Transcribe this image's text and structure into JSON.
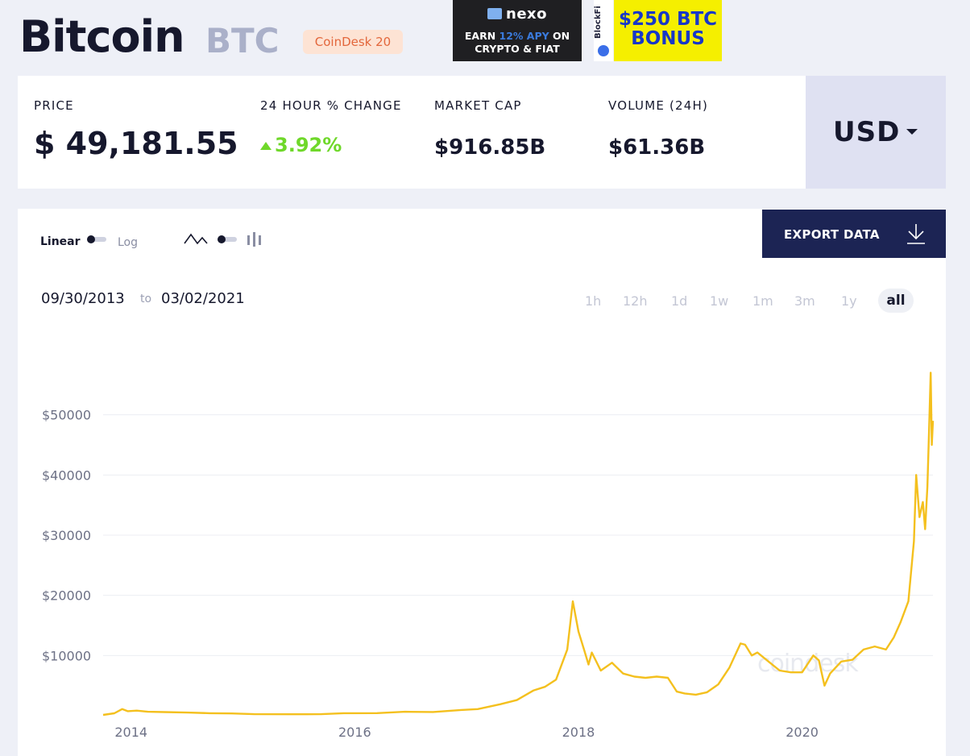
{
  "header": {
    "name": "Bitcoin",
    "symbol": "BTC",
    "index_badge": "CoinDesk 20"
  },
  "ads": {
    "nexo": {
      "brand": "nexo",
      "line1_a": "EARN ",
      "line1_hl": "12% APY",
      "line1_b": " ON",
      "line2": "CRYPTO & FIAT"
    },
    "blockfi": {
      "brand": "BlockFi",
      "line1": "$250 BTC",
      "line2": "BONUS"
    }
  },
  "stats": {
    "price_label": "PRICE",
    "price_value": "$ 49,181.55",
    "change_label": "24 HOUR % CHANGE",
    "change_value": "3.92%",
    "marketcap_label": "MARKET CAP",
    "marketcap_value": "$916.85B",
    "volume_label": "VOLUME (24H)",
    "volume_value": "$61.36B"
  },
  "currency": {
    "selected": "USD"
  },
  "toolbar": {
    "linear_label": "Linear",
    "log_label": "Log",
    "export_label": "EXPORT DATA"
  },
  "range": {
    "from": "09/30/2013",
    "connector": "to",
    "to": "03/02/2021"
  },
  "periods": [
    "1h",
    "12h",
    "1d",
    "1w",
    "1m",
    "3m",
    "1y",
    "all"
  ],
  "active_period": "all",
  "watermark": "coindesk",
  "colors": {
    "line": "#f4c01e",
    "accent_dark": "#1c2454",
    "positive": "#6fd82a"
  },
  "chart_data": {
    "type": "line",
    "title": "",
    "xlabel": "",
    "ylabel": "",
    "x_tick_labels": [
      "2014",
      "2016",
      "2018",
      "2020"
    ],
    "x_ticks": [
      2014,
      2016,
      2018,
      2020
    ],
    "y_tick_labels": [
      "$50000",
      "$40000",
      "$30000",
      "$20000",
      "$10000"
    ],
    "y_ticks": [
      50000,
      40000,
      30000,
      20000,
      10000
    ],
    "xlim": [
      2013.75,
      2021.17
    ],
    "ylim": [
      0,
      60000
    ],
    "grid": "horizontal",
    "series": [
      {
        "x": [
          2013.75,
          2013.85,
          2013.92,
          2013.97,
          2014.05,
          2014.15,
          2014.3,
          2014.5,
          2014.7,
          2014.9,
          2015.1,
          2015.4,
          2015.7,
          2015.9,
          2016.2,
          2016.45,
          2016.7,
          2016.95,
          2017.1,
          2017.3,
          2017.45,
          2017.6,
          2017.7,
          2017.8,
          2017.9,
          2017.95,
          2017.97,
          2018.0,
          2018.05,
          2018.09,
          2018.12,
          2018.2,
          2018.3,
          2018.4,
          2018.5,
          2018.6,
          2018.7,
          2018.8,
          2018.88,
          2018.95,
          2019.05,
          2019.15,
          2019.25,
          2019.35,
          2019.45,
          2019.49,
          2019.55,
          2019.6,
          2019.7,
          2019.8,
          2019.9,
          2020.0,
          2020.1,
          2020.15,
          2020.2,
          2020.25,
          2020.35,
          2020.45,
          2020.55,
          2020.65,
          2020.75,
          2020.82,
          2020.88,
          2020.95,
          2021.0,
          2021.02,
          2021.05,
          2021.08,
          2021.1,
          2021.12,
          2021.135,
          2021.15,
          2021.16,
          2021.17
        ],
        "y": [
          130,
          400,
          1100,
          750,
          850,
          650,
          600,
          520,
          420,
          370,
          250,
          240,
          260,
          420,
          430,
          650,
          620,
          950,
          1100,
          1900,
          2600,
          4200,
          4800,
          6000,
          11000,
          19000,
          17000,
          14000,
          11000,
          8500,
          10500,
          7500,
          8800,
          7000,
          6500,
          6300,
          6500,
          6300,
          4000,
          3700,
          3500,
          3900,
          5200,
          8000,
          12000,
          11800,
          10000,
          10500,
          9000,
          7500,
          7200,
          7200,
          10000,
          9200,
          5000,
          7000,
          9000,
          9300,
          11000,
          11500,
          11000,
          13000,
          15500,
          19000,
          29000,
          40000,
          33000,
          35500,
          31000,
          38000,
          47000,
          57000,
          45000,
          49000
        ]
      }
    ]
  }
}
